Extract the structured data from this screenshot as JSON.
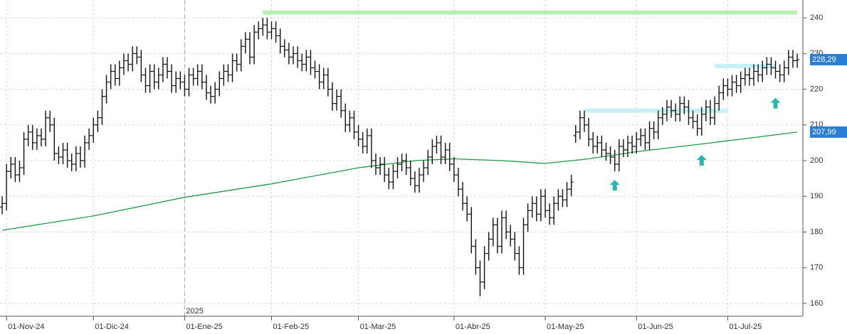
{
  "chart_data": {
    "type": "ohlc",
    "color": "#111111",
    "grid": true,
    "ylim": [
      156.4,
      245
    ],
    "yticks": [
      160,
      170,
      180,
      190,
      200,
      210,
      220,
      230,
      240
    ],
    "xlim": [
      -0.5,
      184.3
    ],
    "xticks": [
      {
        "value": 1,
        "label": "01-Nov-24"
      },
      {
        "value": 21,
        "label": "01-Dic-24"
      },
      {
        "value": 42,
        "label": "01-Ene-25"
      },
      {
        "value": 62,
        "label": "01-Feb-25"
      },
      {
        "value": 82,
        "label": "01-Mar-25"
      },
      {
        "value": 104,
        "label": "01-Abr-25"
      },
      {
        "value": 125,
        "label": "01-May-25"
      },
      {
        "value": 146,
        "label": "01-Jun-25"
      },
      {
        "value": 167,
        "label": "01-Jul-25"
      }
    ],
    "year_marker": {
      "label": "2025",
      "index": 42
    },
    "open": [
      187,
      188,
      197,
      199,
      196,
      198,
      206,
      208,
      205,
      207,
      206,
      212,
      210,
      202,
      201,
      203,
      200,
      199,
      202,
      200,
      205,
      207,
      210,
      212,
      218,
      222,
      225,
      223,
      226,
      228,
      227,
      230,
      229,
      224,
      221,
      225,
      222,
      224,
      227,
      225,
      221,
      223,
      222,
      220,
      224,
      223,
      225,
      222,
      219,
      218,
      220,
      223,
      225,
      224,
      228,
      227,
      232,
      234,
      229,
      236,
      237,
      238,
      236,
      237,
      235,
      232,
      231,
      229,
      230,
      228,
      227,
      229,
      226,
      225,
      222,
      224,
      220,
      216,
      218,
      214,
      210,
      212,
      208,
      206,
      204,
      207,
      200,
      198,
      199,
      196,
      194,
      197,
      199,
      200,
      198,
      195,
      193,
      196,
      198,
      201,
      204,
      205,
      201,
      203,
      199,
      196,
      192,
      188,
      185,
      176,
      170,
      166,
      174,
      178,
      182,
      176,
      184,
      180,
      178,
      174,
      170,
      182,
      186,
      188,
      185,
      190,
      186,
      184,
      188,
      190,
      189,
      192,
      207,
      208,
      212,
      210,
      206,
      204,
      205,
      203,
      202,
      201,
      199,
      204,
      203,
      205,
      204,
      206,
      207,
      205,
      209,
      208,
      212,
      213,
      215,
      214,
      213,
      216,
      215,
      212,
      211,
      209,
      213,
      215,
      212,
      216,
      219,
      221,
      220,
      222,
      221,
      223,
      224,
      223,
      225,
      224,
      226,
      227,
      226,
      225,
      224,
      226,
      229,
      228
    ],
    "high": [
      190,
      199,
      201,
      201,
      200,
      208,
      210,
      210,
      209,
      209,
      214,
      214,
      212,
      204,
      205,
      205,
      202,
      204,
      204,
      207,
      209,
      212,
      214,
      220,
      224,
      227,
      227,
      228,
      230,
      230,
      232,
      232,
      231,
      226,
      227,
      227,
      226,
      229,
      229,
      227,
      225,
      225,
      224,
      226,
      226,
      227,
      227,
      224,
      221,
      222,
      225,
      227,
      227,
      230,
      230,
      234,
      236,
      236,
      238,
      239,
      240,
      240,
      239,
      239,
      237,
      234,
      233,
      232,
      232,
      230,
      231,
      231,
      228,
      227,
      226,
      226,
      222,
      220,
      220,
      216,
      214,
      214,
      210,
      208,
      209,
      209,
      202,
      201,
      201,
      198,
      199,
      201,
      202,
      202,
      200,
      197,
      198,
      200,
      203,
      206,
      207,
      207,
      205,
      205,
      201,
      198,
      194,
      190,
      187,
      178,
      172,
      176,
      180,
      184,
      184,
      186,
      186,
      182,
      180,
      176,
      184,
      188,
      190,
      190,
      192,
      192,
      188,
      190,
      192,
      192,
      194,
      196,
      210,
      214,
      214,
      212,
      208,
      207,
      207,
      205,
      204,
      203,
      206,
      206,
      207,
      207,
      208,
      209,
      209,
      211,
      211,
      214,
      215,
      217,
      217,
      216,
      218,
      218,
      217,
      214,
      213,
      215,
      217,
      217,
      218,
      221,
      223,
      223,
      224,
      224,
      225,
      226,
      226,
      227,
      227,
      228,
      229,
      229,
      228,
      227,
      228,
      231,
      231,
      230
    ],
    "low": [
      185,
      186,
      195,
      194,
      194,
      196,
      204,
      203,
      203,
      204,
      204,
      208,
      200,
      199,
      199,
      198,
      197,
      197,
      198,
      198,
      203,
      205,
      208,
      210,
      216,
      220,
      221,
      221,
      224,
      225,
      225,
      227,
      222,
      219,
      219,
      220,
      220,
      222,
      223,
      219,
      219,
      220,
      218,
      218,
      221,
      221,
      220,
      217,
      216,
      216,
      218,
      221,
      222,
      222,
      225,
      225,
      230,
      227,
      227,
      234,
      235,
      234,
      234,
      233,
      230,
      229,
      227,
      227,
      226,
      225,
      225,
      224,
      223,
      220,
      220,
      218,
      214,
      214,
      212,
      208,
      208,
      206,
      204,
      202,
      202,
      198,
      196,
      196,
      194,
      192,
      192,
      195,
      197,
      196,
      193,
      191,
      191,
      194,
      196,
      199,
      202,
      199,
      199,
      197,
      194,
      190,
      186,
      183,
      174,
      168,
      162,
      164,
      172,
      176,
      174,
      174,
      178,
      176,
      172,
      168,
      168,
      180,
      184,
      183,
      183,
      184,
      182,
      182,
      186,
      187,
      187,
      190,
      205,
      206,
      208,
      204,
      202,
      202,
      201,
      200,
      199,
      197,
      197,
      201,
      201,
      202,
      202,
      204,
      203,
      203,
      206,
      206,
      210,
      211,
      212,
      211,
      211,
      213,
      210,
      209,
      207,
      207,
      211,
      210,
      210,
      214,
      217,
      218,
      218,
      219,
      219,
      221,
      221,
      221,
      222,
      222,
      224,
      224,
      223,
      222,
      222,
      224,
      226,
      226
    ],
    "close": [
      188,
      197,
      199,
      196,
      198,
      206,
      208,
      205,
      207,
      206,
      212,
      210,
      202,
      201,
      203,
      200,
      199,
      202,
      200,
      205,
      207,
      210,
      212,
      218,
      222,
      225,
      223,
      226,
      228,
      227,
      230,
      229,
      224,
      221,
      225,
      222,
      224,
      227,
      225,
      221,
      223,
      222,
      220,
      224,
      223,
      225,
      222,
      219,
      218,
      220,
      223,
      225,
      224,
      228,
      227,
      232,
      234,
      229,
      236,
      237,
      238,
      236,
      237,
      235,
      232,
      231,
      229,
      230,
      228,
      227,
      229,
      226,
      225,
      222,
      224,
      220,
      216,
      218,
      214,
      210,
      212,
      208,
      206,
      204,
      207,
      200,
      198,
      199,
      196,
      194,
      197,
      199,
      200,
      198,
      195,
      193,
      196,
      198,
      201,
      204,
      205,
      201,
      203,
      199,
      196,
      192,
      188,
      185,
      176,
      170,
      166,
      174,
      178,
      182,
      176,
      184,
      180,
      178,
      174,
      170,
      182,
      186,
      188,
      185,
      190,
      186,
      184,
      188,
      190,
      189,
      192,
      194,
      208,
      212,
      210,
      206,
      204,
      205,
      203,
      202,
      201,
      199,
      204,
      203,
      205,
      204,
      206,
      207,
      205,
      209,
      208,
      212,
      213,
      215,
      214,
      213,
      216,
      215,
      212,
      211,
      209,
      213,
      215,
      212,
      216,
      219,
      221,
      220,
      222,
      221,
      223,
      224,
      223,
      225,
      224,
      226,
      227,
      226,
      225,
      224,
      226,
      229,
      228,
      228.29
    ],
    "ma": {
      "color": "#1e9a4a",
      "x": [
        0,
        21,
        42,
        62,
        82,
        95,
        104,
        115,
        125,
        135,
        146,
        160,
        170,
        183
      ],
      "values": [
        180.5,
        184.5,
        189.7,
        193.5,
        198,
        200,
        200.5,
        200,
        199.2,
        200.5,
        202.5,
        204.5,
        206,
        207.99
      ]
    },
    "hlines": [
      {
        "value": 241.5,
        "start": 60,
        "end": 183,
        "color": "#b6f0b0"
      },
      {
        "value": 214,
        "start": 134,
        "end": 167,
        "color": "#c4f1f4"
      },
      {
        "value": 226.5,
        "start": 164,
        "end": 178,
        "color": "#c4f1f4"
      }
    ],
    "markers": {
      "color": "#2bb5b0",
      "x": [
        141,
        161,
        178
      ],
      "values": [
        193,
        200,
        216
      ]
    },
    "price_labels": [
      {
        "value": 228.29,
        "label": "228,29"
      },
      {
        "value": 207.99,
        "label": "207,99"
      }
    ],
    "label_color": "#2a7fd4"
  }
}
